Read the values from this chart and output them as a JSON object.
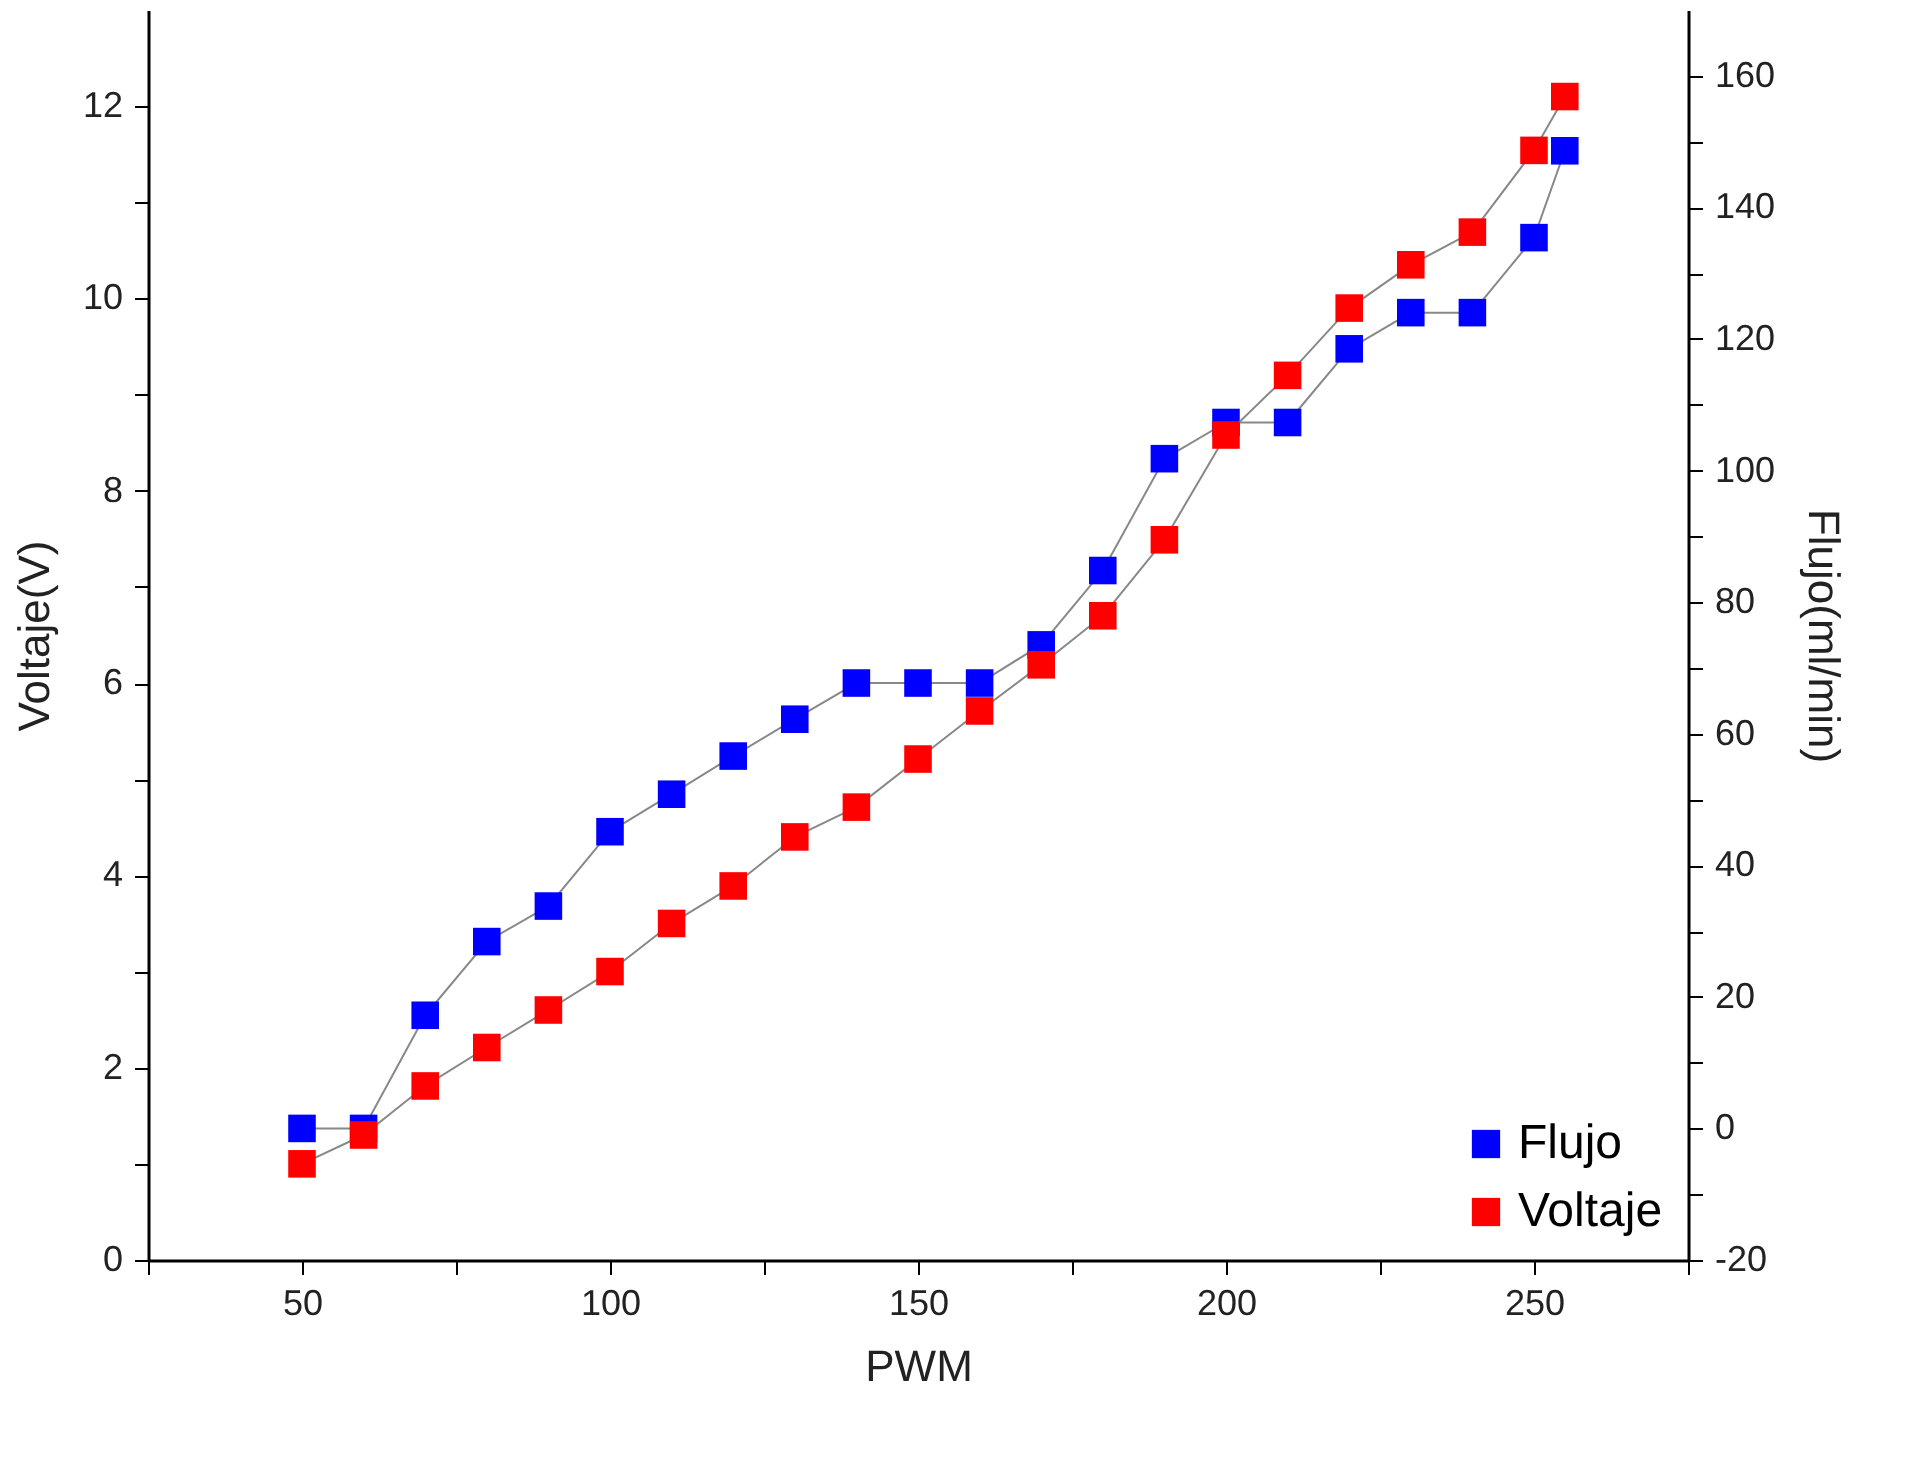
{
  "chart_data": {
    "type": "line",
    "xlabel": "PWM",
    "ylabel": "Voltaje(V)",
    "y2label": "Flujo(ml/min)",
    "x": [
      50,
      60,
      70,
      80,
      90,
      100,
      110,
      120,
      130,
      140,
      150,
      160,
      170,
      180,
      190,
      200,
      210,
      220,
      230,
      240,
      250,
      255
    ],
    "series": [
      {
        "name": "Flujo",
        "color": "#0000ff",
        "axis": "y2",
        "values": [
          0,
          0,
          17.2,
          28.4,
          33.8,
          45.1,
          50.8,
          56.6,
          62.2,
          67.7,
          67.7,
          67.7,
          73.5,
          84.8,
          101.8,
          107.3,
          107.3,
          118.5,
          124,
          124,
          135.4,
          148.6
        ]
      },
      {
        "name": "Voltaje",
        "color": "#ff0000",
        "values": [
          1.0,
          1.3,
          1.81,
          2.21,
          2.6,
          3.0,
          3.5,
          3.89,
          4.4,
          4.71,
          5.21,
          5.71,
          6.19,
          6.7,
          7.49,
          8.58,
          9.2,
          9.9,
          10.35,
          10.69,
          11.54,
          12.1
        ]
      }
    ],
    "xlim": [
      25,
      275
    ],
    "xticks": [
      {
        "value": 25,
        "label": null
      },
      50,
      {
        "value": 75,
        "label": null
      },
      100,
      {
        "value": 125,
        "label": null
      },
      150,
      {
        "value": 175,
        "label": null
      },
      200,
      {
        "value": 225,
        "label": null
      },
      250,
      {
        "value": 275,
        "label": null
      }
    ],
    "ylim": [
      0,
      13
    ],
    "yticks": [
      0,
      {
        "value": 1,
        "label": null
      },
      2,
      {
        "value": 3,
        "label": null
      },
      4,
      {
        "value": 5,
        "label": null
      },
      6,
      {
        "value": 7,
        "label": null
      },
      8,
      {
        "value": 9,
        "label": null
      },
      10,
      {
        "value": 11,
        "label": null
      },
      12
    ],
    "y2lim": [
      -20,
      170
    ],
    "y2ticks": [
      -20,
      {
        "value": -10,
        "label": null
      },
      0,
      {
        "value": 10,
        "label": null
      },
      20,
      {
        "value": 30,
        "label": null
      },
      40,
      {
        "value": 50,
        "label": null
      },
      60,
      {
        "value": 70,
        "label": null
      },
      80,
      {
        "value": 90,
        "label": null
      },
      100,
      {
        "value": 110,
        "label": null
      },
      120,
      {
        "value": 130,
        "label": null
      },
      140,
      {
        "value": 150,
        "label": null
      },
      160
    ],
    "marker": "square",
    "line_style": "solid",
    "grid": false,
    "legend": "bottom right"
  }
}
